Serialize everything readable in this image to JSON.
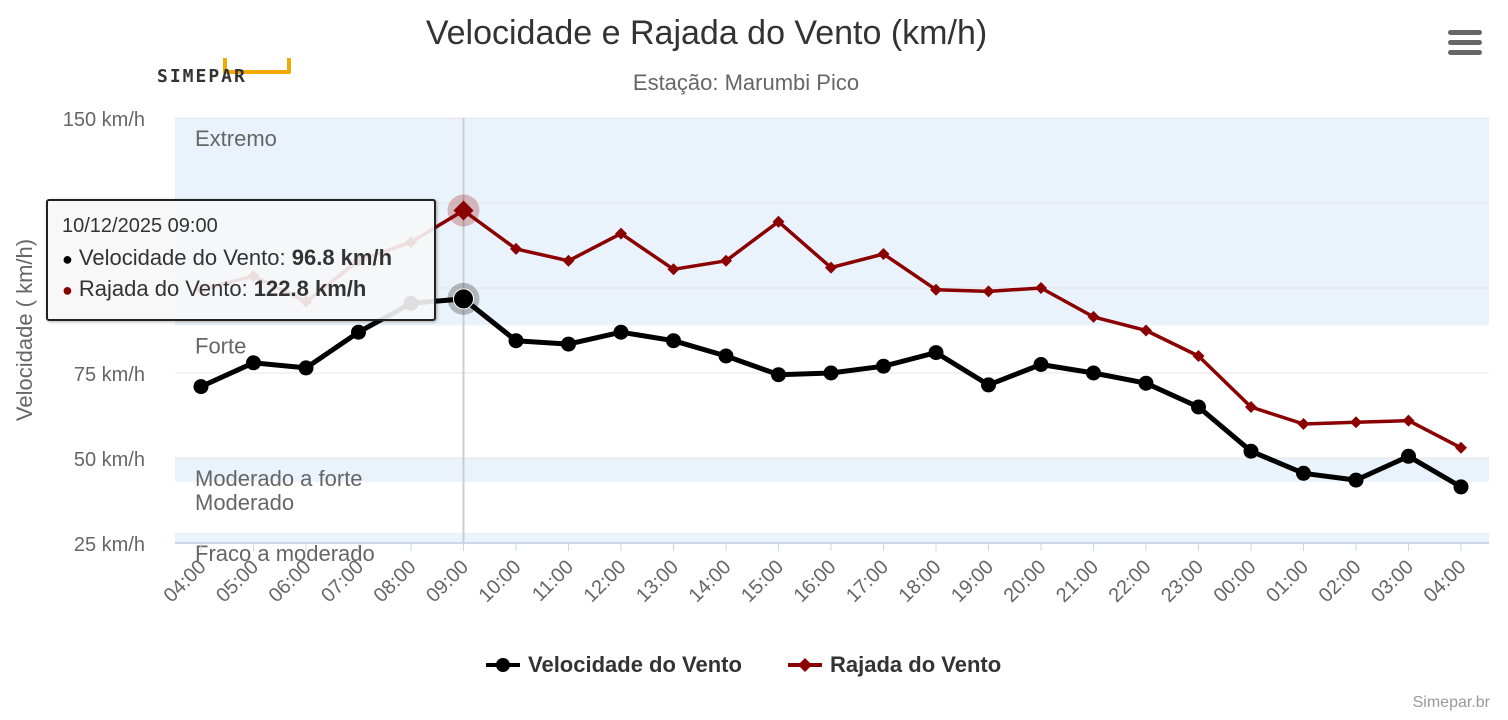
{
  "header": {
    "title": "Velocidade e Rajada do Vento (km/h)",
    "subtitle": "Estação: Marumbi Pico",
    "logo_text": "SIMEPAR",
    "menu_icon": "hamburger-menu-icon",
    "credit": "Simepar.br"
  },
  "colors": {
    "speed": "#000000",
    "gust": "#8b0000",
    "band": "#eaf3fb",
    "grid": "#e6e6e6",
    "crosshair": "#cccccc"
  },
  "tooltip": {
    "date": "10/12/2025 09:00",
    "speed_label": "Velocidade do Vento: ",
    "speed_value": "96.8 km/h",
    "gust_label": "Rajada do Vento: ",
    "gust_value": "122.8 km/h"
  },
  "chart_data": {
    "type": "line",
    "title": "Velocidade e Rajada do Vento (km/h)",
    "subtitle": "Estação: Marumbi Pico",
    "ylabel": "Velocidade ( km/h)",
    "xlabel": "",
    "ylim": [
      25,
      150
    ],
    "y_ticks": [
      25,
      50,
      75,
      150
    ],
    "y_tick_labels": [
      "25 km/h",
      "50 km/h",
      "75 km/h",
      "150 km/h"
    ],
    "grid": true,
    "legend_position": "bottom-center",
    "categories": [
      "04:00",
      "05:00",
      "06:00",
      "07:00",
      "08:00",
      "09:00",
      "10:00",
      "11:00",
      "12:00",
      "13:00",
      "14:00",
      "15:00",
      "16:00",
      "17:00",
      "18:00",
      "19:00",
      "20:00",
      "21:00",
      "22:00",
      "23:00",
      "00:00",
      "01:00",
      "02:00",
      "03:00",
      "04:00"
    ],
    "series": [
      {
        "name": "Velocidade do Vento",
        "marker": "circle",
        "values": [
          71.0,
          78.0,
          76.5,
          87.0,
          95.5,
          96.8,
          84.5,
          83.5,
          87.0,
          84.5,
          80.0,
          74.5,
          75.0,
          77.0,
          81.0,
          71.5,
          77.5,
          75.0,
          72.0,
          65.0,
          52.0,
          45.5,
          43.5,
          50.5,
          41.5
        ]
      },
      {
        "name": "Rajada do Vento",
        "marker": "diamond",
        "values": [
          99.5,
          103.5,
          96.0,
          108.0,
          113.5,
          122.8,
          111.5,
          108.0,
          116.0,
          105.5,
          108.0,
          119.5,
          106.0,
          110.0,
          99.5,
          99.0,
          100.0,
          91.5,
          87.5,
          80.0,
          65.0,
          60.0,
          60.5,
          61.0,
          53.0
        ]
      }
    ],
    "highlight_index": 5,
    "bands": [
      {
        "label": "Extremo",
        "from": 89,
        "to": 150,
        "shaded": true
      },
      {
        "label": "Forte",
        "from": 50,
        "to": 89,
        "shaded": false
      },
      {
        "label": "Moderado a forte",
        "from": 43,
        "to": 50,
        "shaded": true
      },
      {
        "label": "Moderado",
        "from": 28,
        "to": 43,
        "shaded": false
      },
      {
        "label": "Fraco a moderado",
        "from": 25,
        "to": 28,
        "shaded": true
      }
    ]
  }
}
